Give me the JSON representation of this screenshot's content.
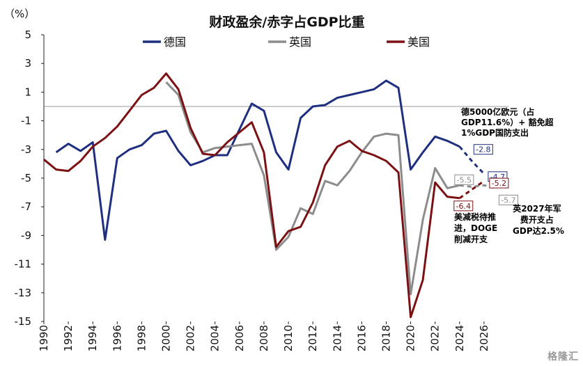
{
  "chart_data": {
    "type": "line",
    "title": "财政盈余/赤字占GDP比重",
    "unit_label": "（%）",
    "xlim": [
      1990,
      2028
    ],
    "ylim": [
      -15,
      5
    ],
    "x_ticks": [
      1990,
      1992,
      1994,
      1996,
      1998,
      2000,
      2002,
      2004,
      2006,
      2008,
      2010,
      2012,
      2014,
      2016,
      2018,
      2020,
      2022,
      2024,
      2026
    ],
    "y_ticks": [
      5,
      3,
      1,
      -1,
      -3,
      -5,
      -7,
      -9,
      -11,
      -13,
      -15
    ],
    "legend_position": "top",
    "grid": false,
    "zero_line": true,
    "series": [
      {
        "name": "德国",
        "color": "#1f2f7f",
        "x": [
          1991,
          1992,
          1993,
          1994,
          1995,
          1996,
          1997,
          1998,
          1999,
          2000,
          2001,
          2002,
          2003,
          2004,
          2005,
          2006,
          2007,
          2008,
          2009,
          2010,
          2011,
          2012,
          2013,
          2014,
          2015,
          2016,
          2017,
          2018,
          2019,
          2020,
          2021,
          2022,
          2023,
          2024
        ],
        "values": [
          -3.2,
          -2.6,
          -3.1,
          -2.5,
          -9.3,
          -3.6,
          -3.0,
          -2.7,
          -1.9,
          -1.7,
          -3.1,
          -4.1,
          -3.8,
          -3.4,
          -3.4,
          -1.6,
          0.2,
          -0.3,
          -3.2,
          -4.4,
          -0.8,
          0.0,
          0.1,
          0.6,
          0.8,
          1.0,
          1.2,
          1.8,
          1.3,
          -4.4,
          -3.2,
          -2.1,
          -2.4,
          -2.8
        ],
        "forecast": {
          "x": [
            2024,
            2025,
            2026
          ],
          "values": [
            -2.8,
            -3.8,
            -4.7
          ]
        },
        "labels": [
          {
            "x": 2025,
            "value": "-2.8"
          },
          {
            "x": 2026,
            "value": "-4.7"
          }
        ]
      },
      {
        "name": "英国",
        "color": "#8c8c8c",
        "x": [
          2000,
          2001,
          2002,
          2003,
          2004,
          2005,
          2006,
          2007,
          2008,
          2009,
          2010,
          2011,
          2012,
          2013,
          2014,
          2015,
          2016,
          2017,
          2018,
          2019,
          2020,
          2021,
          2022,
          2023,
          2024
        ],
        "values": [
          1.7,
          0.8,
          -1.8,
          -3.2,
          -2.9,
          -2.8,
          -2.7,
          -2.6,
          -4.8,
          -10.0,
          -9.1,
          -7.1,
          -7.5,
          -5.2,
          -5.5,
          -4.5,
          -3.2,
          -2.1,
          -1.9,
          -2.0,
          -13.1,
          -7.9,
          -4.3,
          -5.7,
          -5.5
        ],
        "forecast": {
          "x": [
            2024,
            2025,
            2026,
            2027
          ],
          "values": [
            -5.5,
            -5.6,
            -5.5,
            -5.7
          ]
        },
        "labels": [
          {
            "x": 2024,
            "value": "-5.5"
          },
          {
            "x": 2027,
            "value": "-5.7"
          }
        ]
      },
      {
        "name": "美国",
        "color": "#7b1113",
        "x": [
          1990,
          1991,
          1992,
          1993,
          1994,
          1995,
          1996,
          1997,
          1998,
          1999,
          2000,
          2001,
          2002,
          2003,
          2004,
          2005,
          2006,
          2007,
          2008,
          2009,
          2010,
          2011,
          2012,
          2013,
          2014,
          2015,
          2016,
          2017,
          2018,
          2019,
          2020,
          2021,
          2022,
          2023,
          2024
        ],
        "values": [
          -3.7,
          -4.4,
          -4.5,
          -3.8,
          -2.8,
          -2.2,
          -1.4,
          -0.3,
          0.8,
          1.3,
          2.3,
          1.2,
          -1.5,
          -3.3,
          -3.4,
          -2.5,
          -1.8,
          -1.1,
          -3.2,
          -9.8,
          -8.7,
          -8.4,
          -6.7,
          -4.1,
          -2.8,
          -2.4,
          -3.1,
          -3.4,
          -3.8,
          -4.6,
          -14.7,
          -12.1,
          -5.3,
          -6.3,
          -6.4
        ],
        "forecast": {
          "x": [
            2024,
            2025,
            2026
          ],
          "values": [
            -6.4,
            -5.8,
            -5.2
          ]
        },
        "labels": [
          {
            "x": 2024,
            "value": "-6.4"
          },
          {
            "x": 2026,
            "value": "-5.2"
          }
        ]
      }
    ],
    "annotations": [
      {
        "lines": [
          "德5000亿欧元（占",
          "GDP11.6%）+ 豁免超",
          "1%GDP国防支出"
        ],
        "color": "#1f2f7f"
      },
      {
        "lines": [
          "美减税待推",
          "进，DOGE",
          "削减开支"
        ],
        "color": "#7b1113"
      },
      {
        "lines": [
          "英2027年军",
          "费开支占",
          "GDP达2.5%"
        ],
        "color": "#7f7f7f"
      }
    ]
  },
  "watermark": "格隆汇"
}
